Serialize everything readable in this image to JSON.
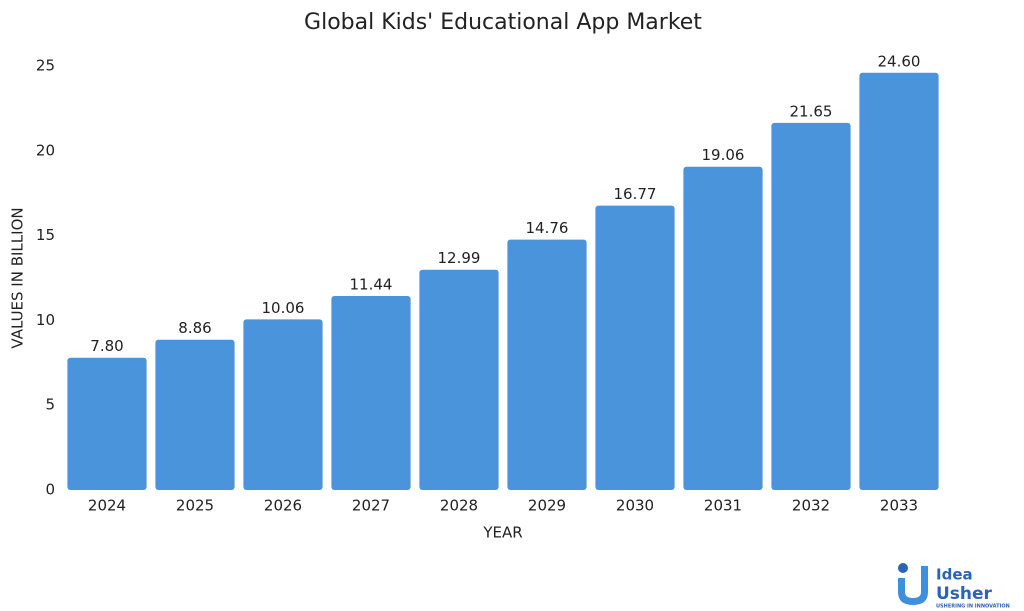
{
  "chart_data": {
    "type": "bar",
    "title": "Global Kids' Educational App Market",
    "x_label": "YEAR",
    "y_label": "VALUES IN BILLION",
    "categories": [
      "2024",
      "2025",
      "2026",
      "2027",
      "2028",
      "2029",
      "2030",
      "2031",
      "2032",
      "2033"
    ],
    "values": [
      7.8,
      8.86,
      10.06,
      11.44,
      12.99,
      14.76,
      16.77,
      19.06,
      21.65,
      24.6
    ],
    "value_labels": [
      "7.80",
      "8.86",
      "10.06",
      "11.44",
      "12.99",
      "14.76",
      "16.77",
      "19.06",
      "21.65",
      "24.60"
    ],
    "color": "#4a94db",
    "ylim": [
      0,
      25
    ],
    "yticks": [
      0,
      5,
      10,
      15,
      20,
      25
    ],
    "grid": false
  },
  "logo": {
    "word1": "Idea",
    "word2": "Usher",
    "tagline": "USHERING IN INNOVATION"
  }
}
